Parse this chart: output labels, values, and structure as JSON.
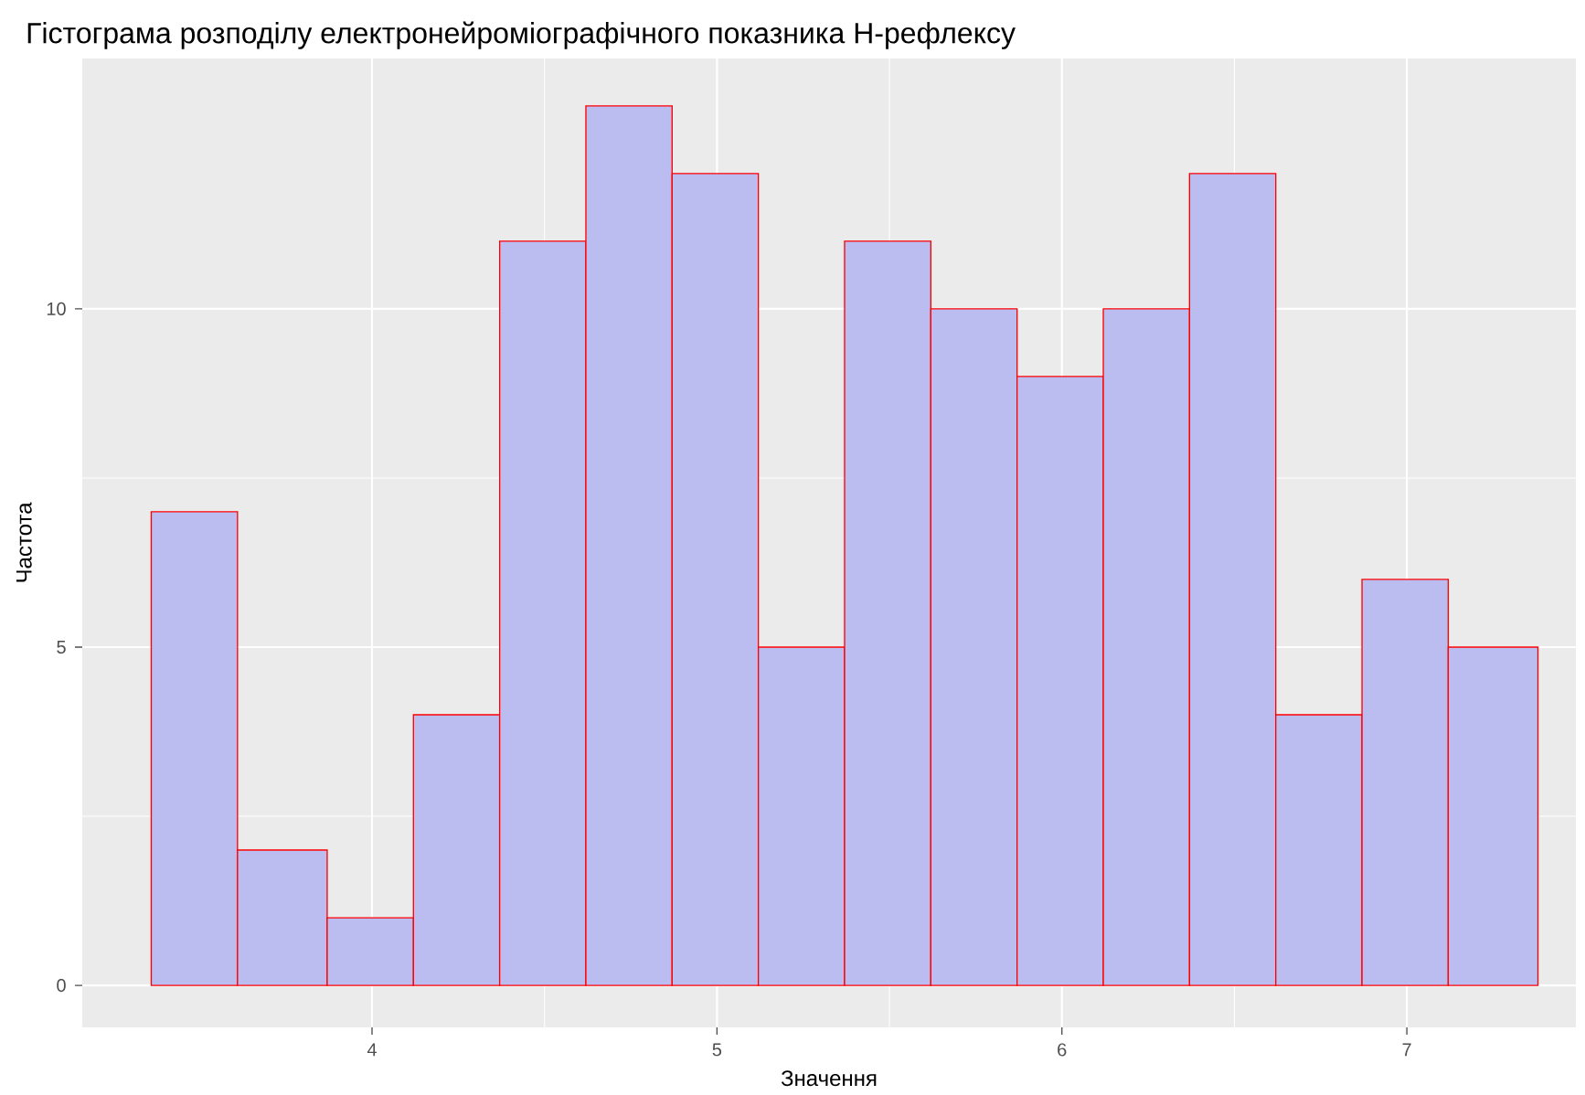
{
  "chart_data": {
    "type": "histogram",
    "title": "Гістограма розподілу електронейроміографічного показника H-рефлексу",
    "xlabel": "Значення",
    "ylabel": "Частота",
    "bins": [
      3.36,
      3.61,
      3.87,
      4.12,
      4.37,
      4.62,
      4.87,
      5.12,
      5.37,
      5.62,
      5.87,
      6.12,
      6.37,
      6.62,
      6.87,
      7.12,
      7.38
    ],
    "values": [
      7,
      2,
      1,
      4,
      11,
      13,
      12,
      5,
      11,
      10,
      9,
      10,
      12,
      4,
      6,
      5
    ],
    "color": "#bbbcf0",
    "xlim": [
      3.16,
      7.49
    ],
    "ylim": [
      -0.62,
      13.7
    ],
    "xticks": [
      4,
      5,
      6,
      7
    ],
    "yticks": [
      0,
      5,
      10
    ],
    "grid": true
  }
}
